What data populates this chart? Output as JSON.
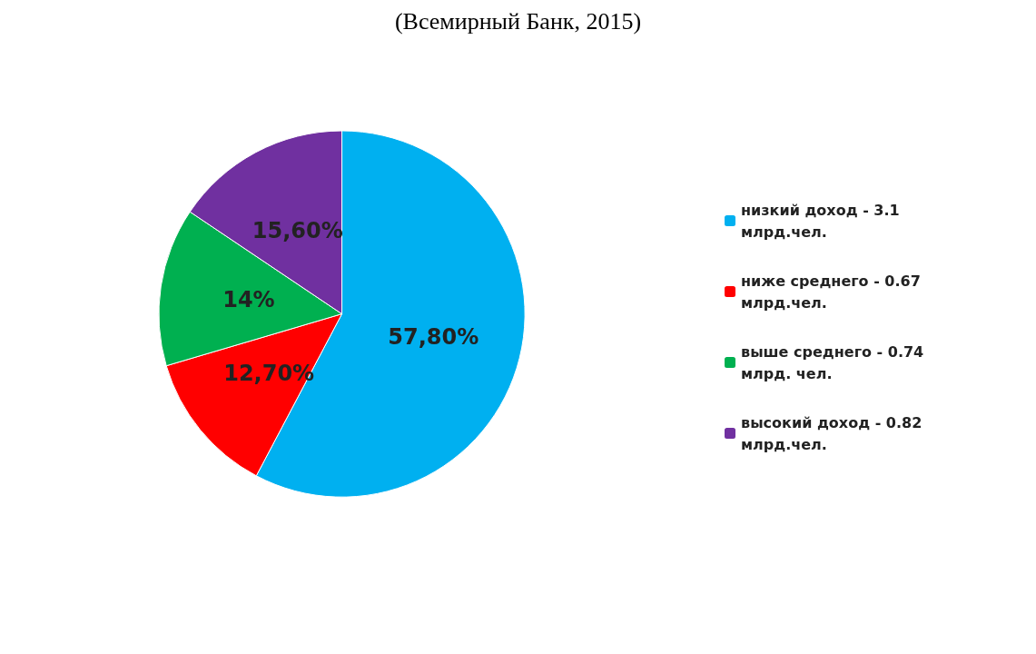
{
  "chart_data": {
    "type": "pie",
    "title": "(Всемирный Банк, 2015)",
    "categories": [
      "низкий доход - 3.1 млрд.чел.",
      "ниже среднего - 0.67 млрд.чел.",
      "выше среднего - 0.74 млрд. чел.",
      "высокий доход - 0.82 млрд.чел."
    ],
    "values": [
      57.8,
      12.7,
      14,
      15.6
    ],
    "value_labels": [
      "57,80%",
      "12,70%",
      "14%",
      "15,60%"
    ],
    "colors": [
      "#00b0f0",
      "#ff0000",
      "#00b050",
      "#7030a0"
    ],
    "legend": "right"
  }
}
